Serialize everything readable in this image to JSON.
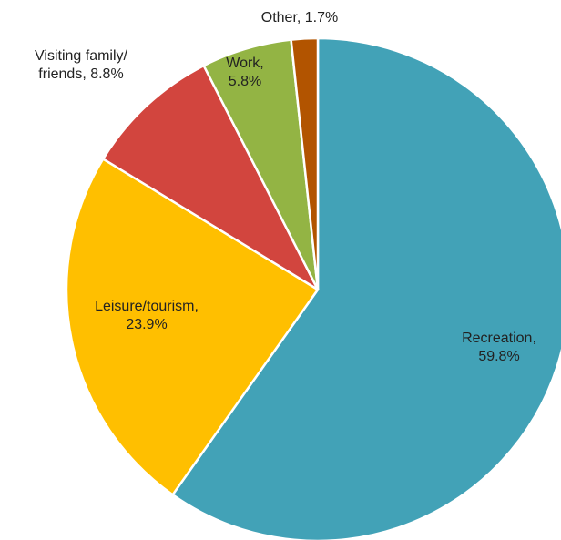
{
  "chart_data": {
    "type": "pie",
    "title": "",
    "start_angle_deg": 0,
    "direction": "clockwise",
    "slices": [
      {
        "category": "Recreation",
        "value": 59.8,
        "label_lines": [
          "Recreation,",
          "59.8%"
        ],
        "color": "#42a2b7"
      },
      {
        "category": "Leisure/tourism",
        "value": 23.9,
        "label_lines": [
          "Leisure/tourism,",
          "23.9%"
        ],
        "color": "#ffbf00"
      },
      {
        "category": "Visiting family/friends",
        "value": 8.8,
        "label_lines": [
          "Visiting family/",
          "friends, 8.8%"
        ],
        "color": "#d2453e"
      },
      {
        "category": "Work",
        "value": 5.8,
        "label_lines": [
          "Work,",
          "5.8%"
        ],
        "color": "#93b444"
      },
      {
        "category": "Other",
        "value": 1.7,
        "label_lines": [
          "Other, 1.7%"
        ],
        "color": "#b25400"
      }
    ]
  }
}
